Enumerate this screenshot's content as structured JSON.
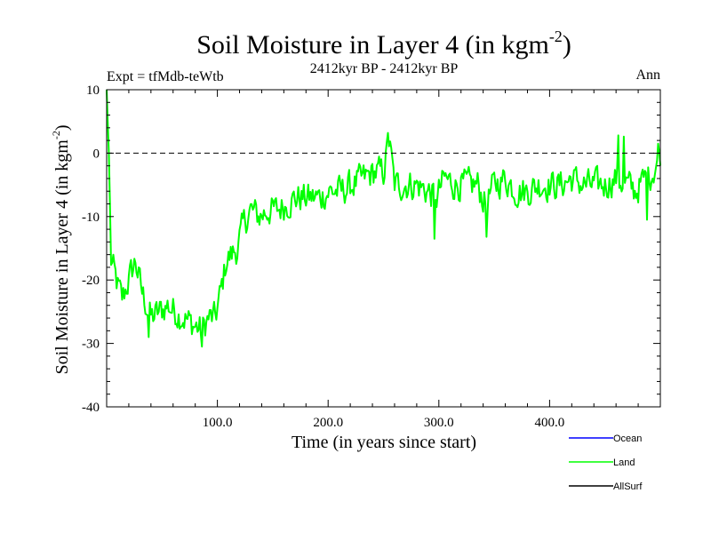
{
  "chart_data": {
    "type": "line",
    "title": "Soil Moisture in Layer 4 (in kgm",
    "title_sup": "-2",
    "title_close": ")",
    "subtitle": "2412kyr BP - 2412kyr BP",
    "expt_label": "Expt = tfMdb-teWtb",
    "season_label": "Ann",
    "xlabel": "Time (in years since start)",
    "ylabel": "Soil Moisture in Layer 4 (in kgm",
    "ylabel_sup": "-2",
    "ylabel_close": ")",
    "xlim": [
      0,
      500
    ],
    "ylim": [
      -40,
      10
    ],
    "xticks": [
      100,
      200,
      300,
      400
    ],
    "xtick_labels": [
      "100.0",
      "200.0",
      "300.0",
      "400.0"
    ],
    "yticks": [
      -40,
      -30,
      -20,
      -10,
      0,
      10
    ],
    "ytick_labels": [
      "-40",
      "-30",
      "-20",
      "-10",
      "0",
      "10"
    ],
    "reference_line": 0,
    "legend": [
      {
        "name": "Ocean",
        "color": "#0000ff"
      },
      {
        "name": "Land",
        "color": "#00ff00"
      },
      {
        "name": "AllSurf",
        "color": "#000000"
      }
    ],
    "legend_position": "bottom-right",
    "series": [
      {
        "name": "Land",
        "color": "#00ff00",
        "anchors": [
          [
            0,
            10
          ],
          [
            2,
            0
          ],
          [
            4,
            -17
          ],
          [
            7,
            -19
          ],
          [
            10,
            -21
          ],
          [
            14,
            -23
          ],
          [
            20,
            -20
          ],
          [
            26,
            -17
          ],
          [
            32,
            -22
          ],
          [
            40,
            -26
          ],
          [
            48,
            -25
          ],
          [
            55,
            -24
          ],
          [
            62,
            -25
          ],
          [
            70,
            -26
          ],
          [
            78,
            -27
          ],
          [
            86,
            -28
          ],
          [
            92,
            -26
          ],
          [
            98,
            -26
          ],
          [
            103,
            -22
          ],
          [
            108,
            -17
          ],
          [
            113,
            -16
          ],
          [
            118,
            -15
          ],
          [
            124,
            -11
          ],
          [
            130,
            -9
          ],
          [
            138,
            -10
          ],
          [
            146,
            -9
          ],
          [
            154,
            -9
          ],
          [
            162,
            -8
          ],
          [
            172,
            -7
          ],
          [
            182,
            -7
          ],
          [
            192,
            -7
          ],
          [
            202,
            -6
          ],
          [
            212,
            -6
          ],
          [
            222,
            -5
          ],
          [
            232,
            -4
          ],
          [
            242,
            -3
          ],
          [
            250,
            -3
          ],
          [
            255,
            2
          ],
          [
            260,
            -5
          ],
          [
            270,
            -5
          ],
          [
            280,
            -5
          ],
          [
            290,
            -6
          ],
          [
            298,
            -7
          ],
          [
            305,
            -4
          ],
          [
            315,
            -5
          ],
          [
            325,
            -5
          ],
          [
            335,
            -5
          ],
          [
            342,
            -8
          ],
          [
            350,
            -5
          ],
          [
            360,
            -4
          ],
          [
            370,
            -6
          ],
          [
            380,
            -6
          ],
          [
            390,
            -5
          ],
          [
            400,
            -5
          ],
          [
            410,
            -5
          ],
          [
            420,
            -4
          ],
          [
            430,
            -5
          ],
          [
            440,
            -5
          ],
          [
            450,
            -5
          ],
          [
            460,
            -4
          ],
          [
            470,
            -5
          ],
          [
            478,
            -6
          ],
          [
            486,
            -4
          ],
          [
            493,
            -3
          ],
          [
            500,
            0
          ]
        ],
        "noise_amplitude": 2.2,
        "spikes": [
          [
            254,
            3.2
          ],
          [
            296,
            -13.5
          ],
          [
            343,
            -13.2
          ],
          [
            462,
            2.8
          ],
          [
            467,
            2.6
          ],
          [
            488,
            -10.5
          ],
          [
            498,
            1.5
          ],
          [
            86,
            -30.5
          ],
          [
            38,
            -29
          ]
        ]
      }
    ]
  }
}
